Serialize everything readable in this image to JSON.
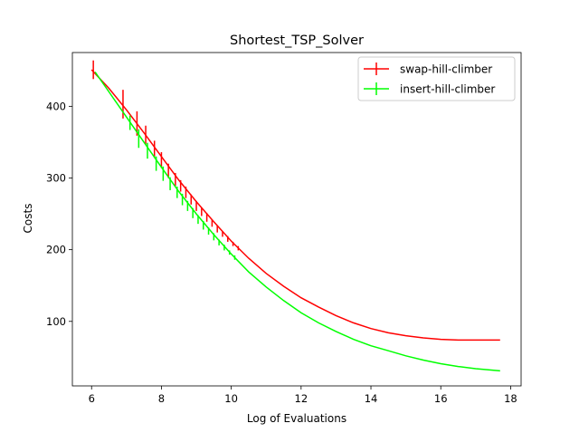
{
  "chart_data": {
    "type": "line",
    "title": "Shortest_TSP_Solver",
    "xlabel": "Log of Evaluations",
    "ylabel": "Costs",
    "xlim": [
      5.45,
      18.3
    ],
    "ylim": [
      10,
      475
    ],
    "xticks": [
      6,
      8,
      10,
      12,
      14,
      16,
      18
    ],
    "yticks": [
      100,
      200,
      300,
      400
    ],
    "grid": false,
    "legend_position": "top-right",
    "series": [
      {
        "name": "swap-hill-climber",
        "color": "#ff0000",
        "x": [
          6.0,
          6.5,
          7.0,
          7.5,
          8.0,
          8.5,
          9.0,
          9.5,
          10.0,
          10.5,
          11.0,
          11.5,
          12.0,
          12.5,
          13.0,
          13.5,
          14.0,
          14.5,
          15.0,
          15.5,
          16.0,
          16.5,
          17.0,
          17.7
        ],
        "y": [
          451,
          425,
          395,
          363,
          330,
          297,
          267,
          239,
          212,
          188,
          167,
          149,
          133,
          120,
          108,
          98,
          90,
          84,
          80,
          77,
          75,
          74,
          74,
          74
        ],
        "error_bars": [
          {
            "x": 6.05,
            "y": 451,
            "err": 13
          },
          {
            "x": 6.9,
            "y": 403,
            "err": 20
          },
          {
            "x": 7.3,
            "y": 376,
            "err": 17
          },
          {
            "x": 7.55,
            "y": 360,
            "err": 13
          },
          {
            "x": 7.8,
            "y": 340,
            "err": 12
          },
          {
            "x": 8.0,
            "y": 325,
            "err": 11
          },
          {
            "x": 8.2,
            "y": 310,
            "err": 10
          },
          {
            "x": 8.4,
            "y": 298,
            "err": 9
          },
          {
            "x": 8.55,
            "y": 289,
            "err": 8
          },
          {
            "x": 8.7,
            "y": 280,
            "err": 8
          },
          {
            "x": 8.85,
            "y": 270,
            "err": 7
          },
          {
            "x": 9.0,
            "y": 261,
            "err": 7
          },
          {
            "x": 9.15,
            "y": 253,
            "err": 6
          },
          {
            "x": 9.3,
            "y": 245,
            "err": 6
          },
          {
            "x": 9.45,
            "y": 237,
            "err": 5
          },
          {
            "x": 9.6,
            "y": 229,
            "err": 5
          },
          {
            "x": 9.75,
            "y": 222,
            "err": 4
          },
          {
            "x": 9.9,
            "y": 215,
            "err": 4
          },
          {
            "x": 10.05,
            "y": 208,
            "err": 3
          },
          {
            "x": 10.2,
            "y": 202,
            "err": 3
          }
        ]
      },
      {
        "name": "insert-hill-climber",
        "color": "#00ff00",
        "x": [
          6.1,
          6.5,
          7.0,
          7.5,
          8.0,
          8.5,
          9.0,
          9.5,
          10.0,
          10.5,
          11.0,
          11.5,
          12.0,
          12.5,
          13.0,
          13.5,
          14.0,
          14.5,
          15.0,
          15.5,
          16.0,
          16.5,
          17.0,
          17.7
        ],
        "y": [
          448,
          420,
          385,
          350,
          315,
          281,
          250,
          221,
          194,
          169,
          148,
          129,
          112,
          98,
          86,
          75,
          66,
          59,
          52,
          46,
          41,
          37,
          34,
          31
        ],
        "error_bars": [
          {
            "x": 7.1,
            "y": 377,
            "err": 10
          },
          {
            "x": 7.35,
            "y": 355,
            "err": 13
          },
          {
            "x": 7.6,
            "y": 338,
            "err": 11
          },
          {
            "x": 7.85,
            "y": 320,
            "err": 10
          },
          {
            "x": 8.05,
            "y": 306,
            "err": 10
          },
          {
            "x": 8.25,
            "y": 292,
            "err": 9
          },
          {
            "x": 8.45,
            "y": 280,
            "err": 8
          },
          {
            "x": 8.6,
            "y": 270,
            "err": 8
          },
          {
            "x": 8.75,
            "y": 261,
            "err": 7
          },
          {
            "x": 8.9,
            "y": 251,
            "err": 7
          },
          {
            "x": 9.05,
            "y": 242,
            "err": 6
          },
          {
            "x": 9.2,
            "y": 234,
            "err": 6
          },
          {
            "x": 9.35,
            "y": 226,
            "err": 5
          },
          {
            "x": 9.5,
            "y": 218,
            "err": 5
          },
          {
            "x": 9.65,
            "y": 210,
            "err": 4
          },
          {
            "x": 9.8,
            "y": 203,
            "err": 4
          },
          {
            "x": 9.95,
            "y": 196,
            "err": 3
          },
          {
            "x": 10.1,
            "y": 189,
            "err": 3
          }
        ]
      }
    ]
  }
}
